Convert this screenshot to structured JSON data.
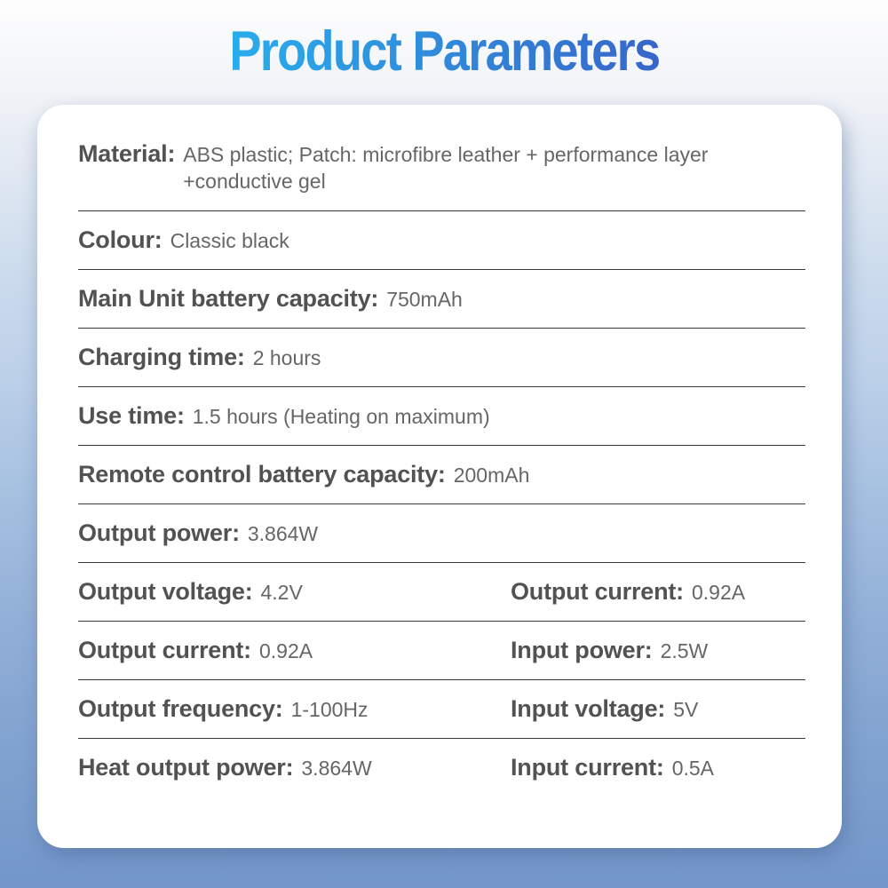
{
  "page": {
    "title": "Product Parameters"
  },
  "theme": {
    "title_gradient_from": "#29adec",
    "title_gradient_to": "#3766c9",
    "background_top": "#fefefe",
    "background_bottom": "#7396ca",
    "card_background": "#ffffff",
    "label_color": "#525252",
    "value_color": "#666666",
    "divider_color": "#3b3b3b"
  },
  "parameters": {
    "single": [
      {
        "label": "Material:",
        "value": "ABS plastic; Patch: microfibre leather + performance layer +conductive gel"
      },
      {
        "label": "Colour:",
        "value": "Classic black"
      },
      {
        "label": "Main Unit battery capacity:",
        "value": "750mAh"
      },
      {
        "label": "Charging time:",
        "value": "2 hours"
      },
      {
        "label": "Use time:",
        "value": "1.5 hours (Heating on maximum)"
      },
      {
        "label": "Remote control battery capacity:",
        "value": "200mAh"
      },
      {
        "label": "Output power:",
        "value": "3.864W"
      }
    ],
    "double": [
      {
        "left": {
          "label": "Output voltage:",
          "value": "4.2V"
        },
        "right": {
          "label": "Output current:",
          "value": "0.92A"
        }
      },
      {
        "left": {
          "label": "Output current:",
          "value": "0.92A"
        },
        "right": {
          "label": "Input power:",
          "value": "2.5W"
        }
      },
      {
        "left": {
          "label": "Output frequency:",
          "value": "1-100Hz"
        },
        "right": {
          "label": "Input voltage:",
          "value": "5V"
        }
      },
      {
        "left": {
          "label": "Heat output power:",
          "value": "3.864W"
        },
        "right": {
          "label": "Input current:",
          "value": "0.5A"
        }
      }
    ]
  }
}
